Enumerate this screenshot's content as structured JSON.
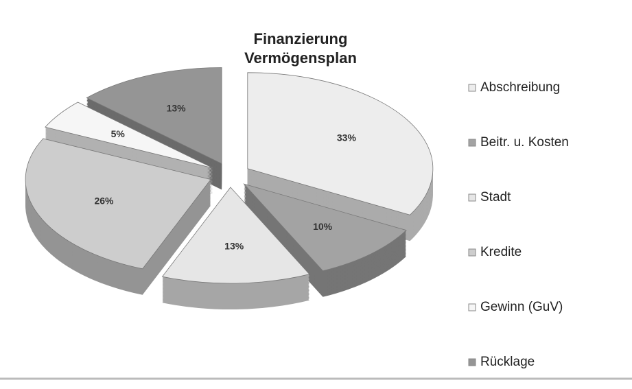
{
  "chart_data": {
    "type": "pie3d",
    "title": [
      "Finanzierung",
      "Vermögensplan"
    ],
    "categories": [
      "Abschreibung",
      "Beitr. u. Kosten",
      "Stadt",
      "Kredite",
      "Gewinn (GuV)",
      "Rücklage"
    ],
    "values": [
      33,
      10,
      13,
      26,
      5,
      13
    ],
    "value_labels": [
      "33%",
      "10%",
      "13%",
      "26%",
      "5%",
      "13%"
    ],
    "colors": [
      "#ededed",
      "#a3a3a3",
      "#e6e6e6",
      "#cdcdcd",
      "#f6f6f6",
      "#959595"
    ],
    "legend": "right"
  }
}
